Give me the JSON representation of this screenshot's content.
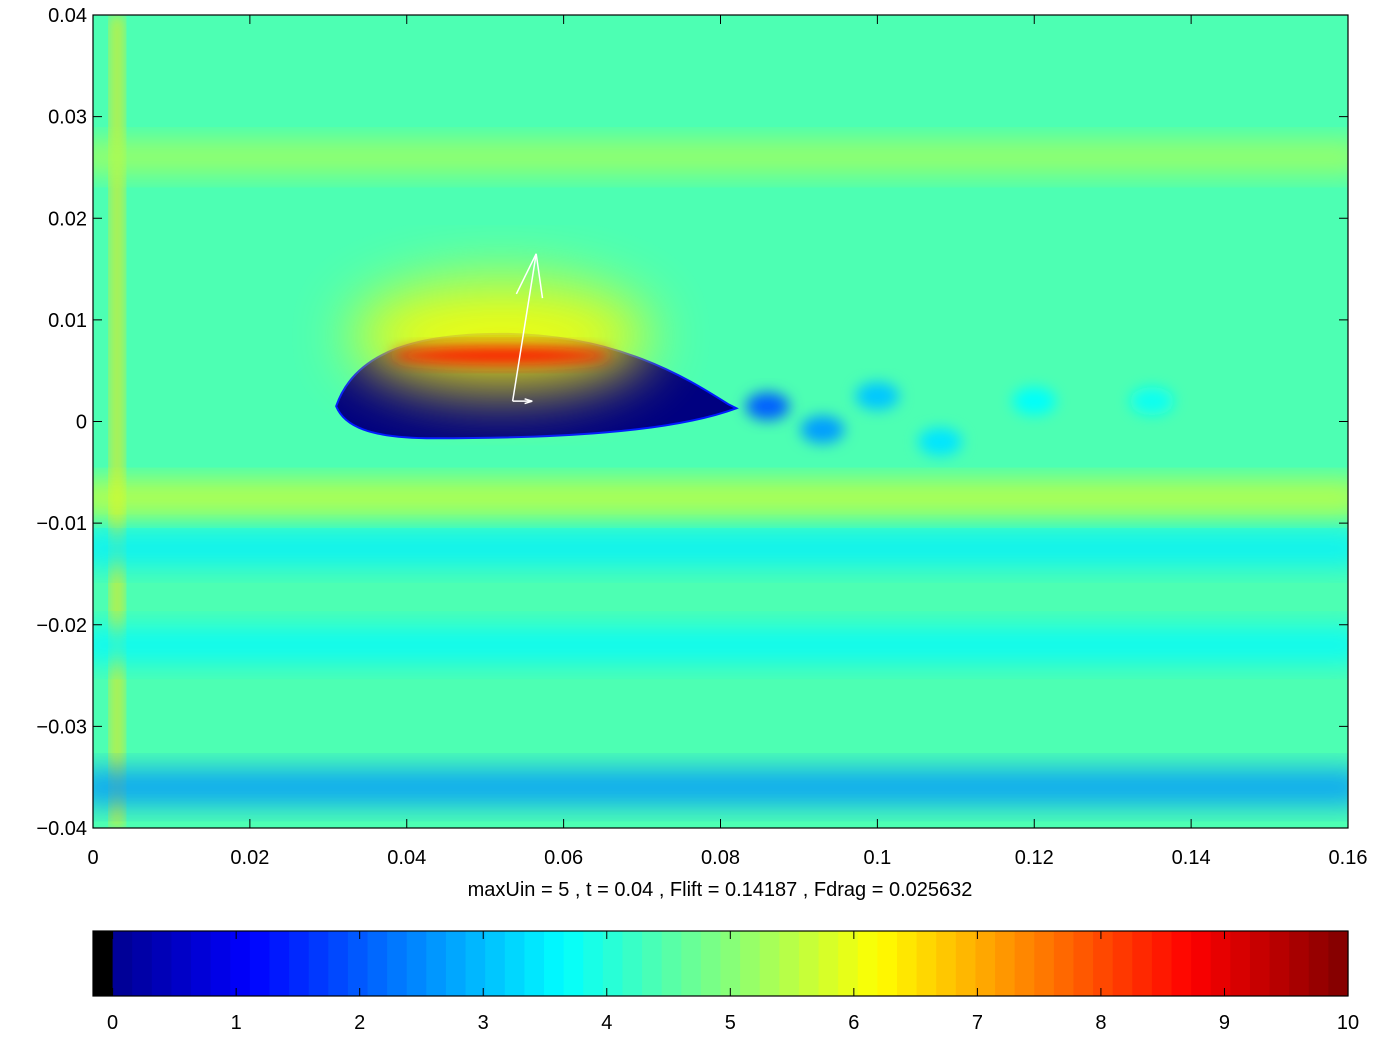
{
  "chart_data": [
    {
      "type": "heatmap",
      "title": "",
      "xlabel": "maxUin = 5 , t = 0.04 , Flift = 0.14187 , Fdrag = 0.025632",
      "ylabel": "",
      "xlim": [
        0,
        0.16
      ],
      "ylim": [
        -0.04,
        0.04
      ],
      "x_ticks": [
        "0",
        "0.02",
        "0.04",
        "0.06",
        "0.08",
        "0.1",
        "0.12",
        "0.14",
        "0.16"
      ],
      "y_ticks": [
        "0.04",
        "0.03",
        "0.02",
        "0.01",
        "0",
        "−0.01",
        "−0.02",
        "−0.03",
        "−0.04"
      ],
      "grid": false,
      "colormap": "jet",
      "color_range": [
        0,
        10
      ],
      "background_value": 4.5,
      "field_features": [
        {
          "kind": "airfoil",
          "x_leading": 0.031,
          "x_trailing": 0.081,
          "thickness": 0.0075,
          "value": 0
        },
        {
          "kind": "wake-vortex",
          "x": 0.086,
          "y": 0.0015,
          "value": 2.2
        },
        {
          "kind": "wake-vortex",
          "x": 0.093,
          "y": -0.0008,
          "value": 2.8
        },
        {
          "kind": "wake-vortex",
          "x": 0.1,
          "y": 0.0025,
          "value": 3.2
        },
        {
          "kind": "wake-vortex",
          "x": 0.108,
          "y": -0.002,
          "value": 3.5
        },
        {
          "kind": "wake-vortex",
          "x": 0.12,
          "y": 0.002,
          "value": 3.8
        },
        {
          "kind": "wake-vortex",
          "x": 0.135,
          "y": 0.002,
          "value": 3.9
        },
        {
          "kind": "suction-peak",
          "x": 0.052,
          "y": 0.0065,
          "value": 8.5
        },
        {
          "kind": "inlet-band",
          "x": 0.003,
          "value": 6.5
        },
        {
          "kind": "low-speed-band",
          "y": -0.0125,
          "value": 3.6
        },
        {
          "kind": "low-speed-band",
          "y": -0.022,
          "value": 3.7
        },
        {
          "kind": "low-speed-band",
          "y": -0.036,
          "value": 2.7
        },
        {
          "kind": "high-speed-band",
          "y": -0.0075,
          "value": 5.8
        },
        {
          "kind": "high-speed-band",
          "y": 0.026,
          "value": 5.4
        }
      ],
      "force_vectors": [
        {
          "name": "",
          "x": 0.0535,
          "y": 0.002,
          "dx": 0.003,
          "dy": 0.0145
        },
        {
          "name": "",
          "x": 0.0535,
          "y": 0.002,
          "dx": 0.0025,
          "dy": 0
        }
      ]
    },
    {
      "type": "colorbar",
      "title": "",
      "xlabel": "",
      "ylabel": "",
      "xlim": [
        0,
        10
      ],
      "x_ticks": [
        "0",
        "1",
        "2",
        "3",
        "4",
        "5",
        "6",
        "7",
        "8",
        "9",
        "10"
      ],
      "levels": 64,
      "colormap": "jet"
    }
  ]
}
